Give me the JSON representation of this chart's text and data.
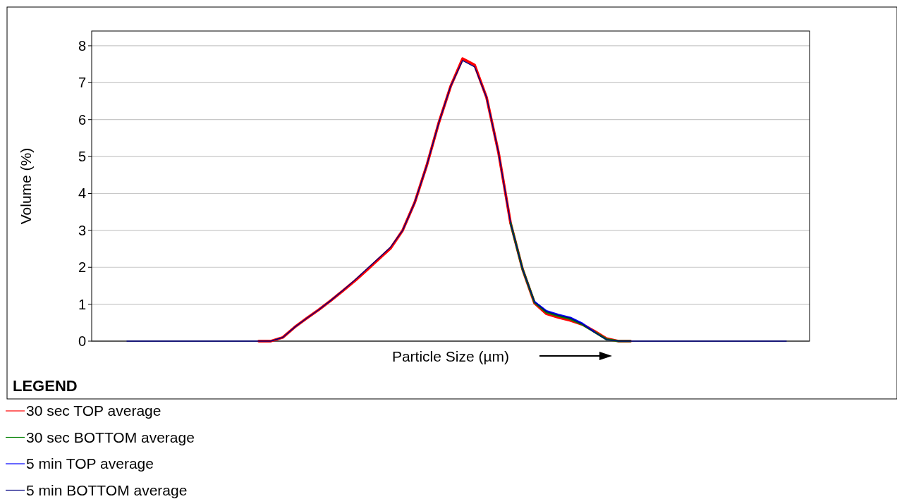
{
  "chart_data": {
    "type": "line",
    "xlabel": "Particle Size (µm)",
    "ylabel": "Volume (%)",
    "legend_title": "LEGEND",
    "categories": [
      null,
      null,
      null,
      null,
      null,
      null,
      null,
      null,
      null,
      null,
      null,
      null,
      null,
      null,
      null,
      null,
      null,
      null,
      null,
      null,
      null,
      null,
      null,
      null,
      null,
      null,
      null,
      null,
      null,
      null,
      null,
      null,
      null,
      null,
      null,
      null,
      null,
      null,
      null,
      null,
      null,
      null,
      null,
      null,
      null,
      null,
      null,
      null,
      null,
      null,
      null,
      null,
      null,
      null,
      null,
      null
    ],
    "series": [
      {
        "name": "30 sec TOP average",
        "color": "#ff0000",
        "values": [
          null,
          null,
          null,
          null,
          null,
          null,
          null,
          null,
          null,
          null,
          null,
          0,
          0,
          0.1,
          0.38,
          0.62,
          0.85,
          1.1,
          1.36,
          1.63,
          1.92,
          2.22,
          2.52,
          3.0,
          3.75,
          4.75,
          5.9,
          6.9,
          7.65,
          7.48,
          6.6,
          5.1,
          3.2,
          1.95,
          1.03,
          0.74,
          0.64,
          0.56,
          0.45,
          0.27,
          0.07,
          0,
          0,
          null,
          null,
          null,
          null,
          null,
          null,
          null,
          null,
          null,
          null,
          null,
          null,
          null
        ]
      },
      {
        "name": "30 sec BOTTOM average",
        "color": "#008000",
        "values": [
          null,
          null,
          null,
          null,
          null,
          null,
          null,
          null,
          null,
          null,
          null,
          null,
          null,
          null,
          null,
          null,
          null,
          null,
          null,
          null,
          null,
          null,
          null,
          null,
          null,
          null,
          null,
          null,
          null,
          null,
          null,
          null,
          3.2,
          1.95,
          1.05,
          0.78,
          0.68,
          0.6,
          0.45,
          0.25,
          0.05,
          0,
          0,
          null,
          null,
          null,
          null,
          null,
          null,
          null,
          null,
          null,
          null,
          null,
          null,
          null
        ]
      },
      {
        "name": "5 min TOP average",
        "color": "#0000ff",
        "values": [
          null,
          null,
          null,
          null,
          null,
          null,
          null,
          null,
          null,
          null,
          null,
          null,
          null,
          null,
          null,
          null,
          null,
          null,
          null,
          null,
          null,
          null,
          null,
          null,
          null,
          null,
          null,
          null,
          null,
          null,
          null,
          null,
          null,
          null,
          1.07,
          0.82,
          0.72,
          0.64,
          0.48,
          0.25,
          null,
          null,
          null,
          null,
          null,
          null,
          null,
          null,
          null,
          null,
          null,
          null,
          null,
          null,
          null,
          null
        ]
      },
      {
        "name": "5 min BOTTOM average",
        "color": "#000080",
        "values": [
          0,
          0,
          0,
          0,
          0,
          0,
          0,
          0,
          0,
          0,
          0,
          0,
          0,
          0.1,
          0.38,
          0.62,
          0.85,
          1.1,
          1.37,
          1.65,
          1.95,
          2.25,
          2.55,
          3.0,
          3.75,
          4.75,
          5.9,
          6.9,
          7.6,
          7.43,
          6.6,
          5.1,
          3.2,
          1.95,
          1.06,
          0.8,
          0.7,
          0.62,
          0.46,
          0.24,
          0.04,
          0,
          0,
          0,
          0,
          0,
          0,
          0,
          0,
          0,
          0,
          0,
          0,
          0,
          0,
          0
        ]
      }
    ],
    "ylim": [
      0,
      8.4
    ],
    "yticks": [
      0,
      1,
      2,
      3,
      4,
      5,
      6,
      7,
      8
    ],
    "grid": "y",
    "legend": "bottom left",
    "line_style": "solid"
  }
}
